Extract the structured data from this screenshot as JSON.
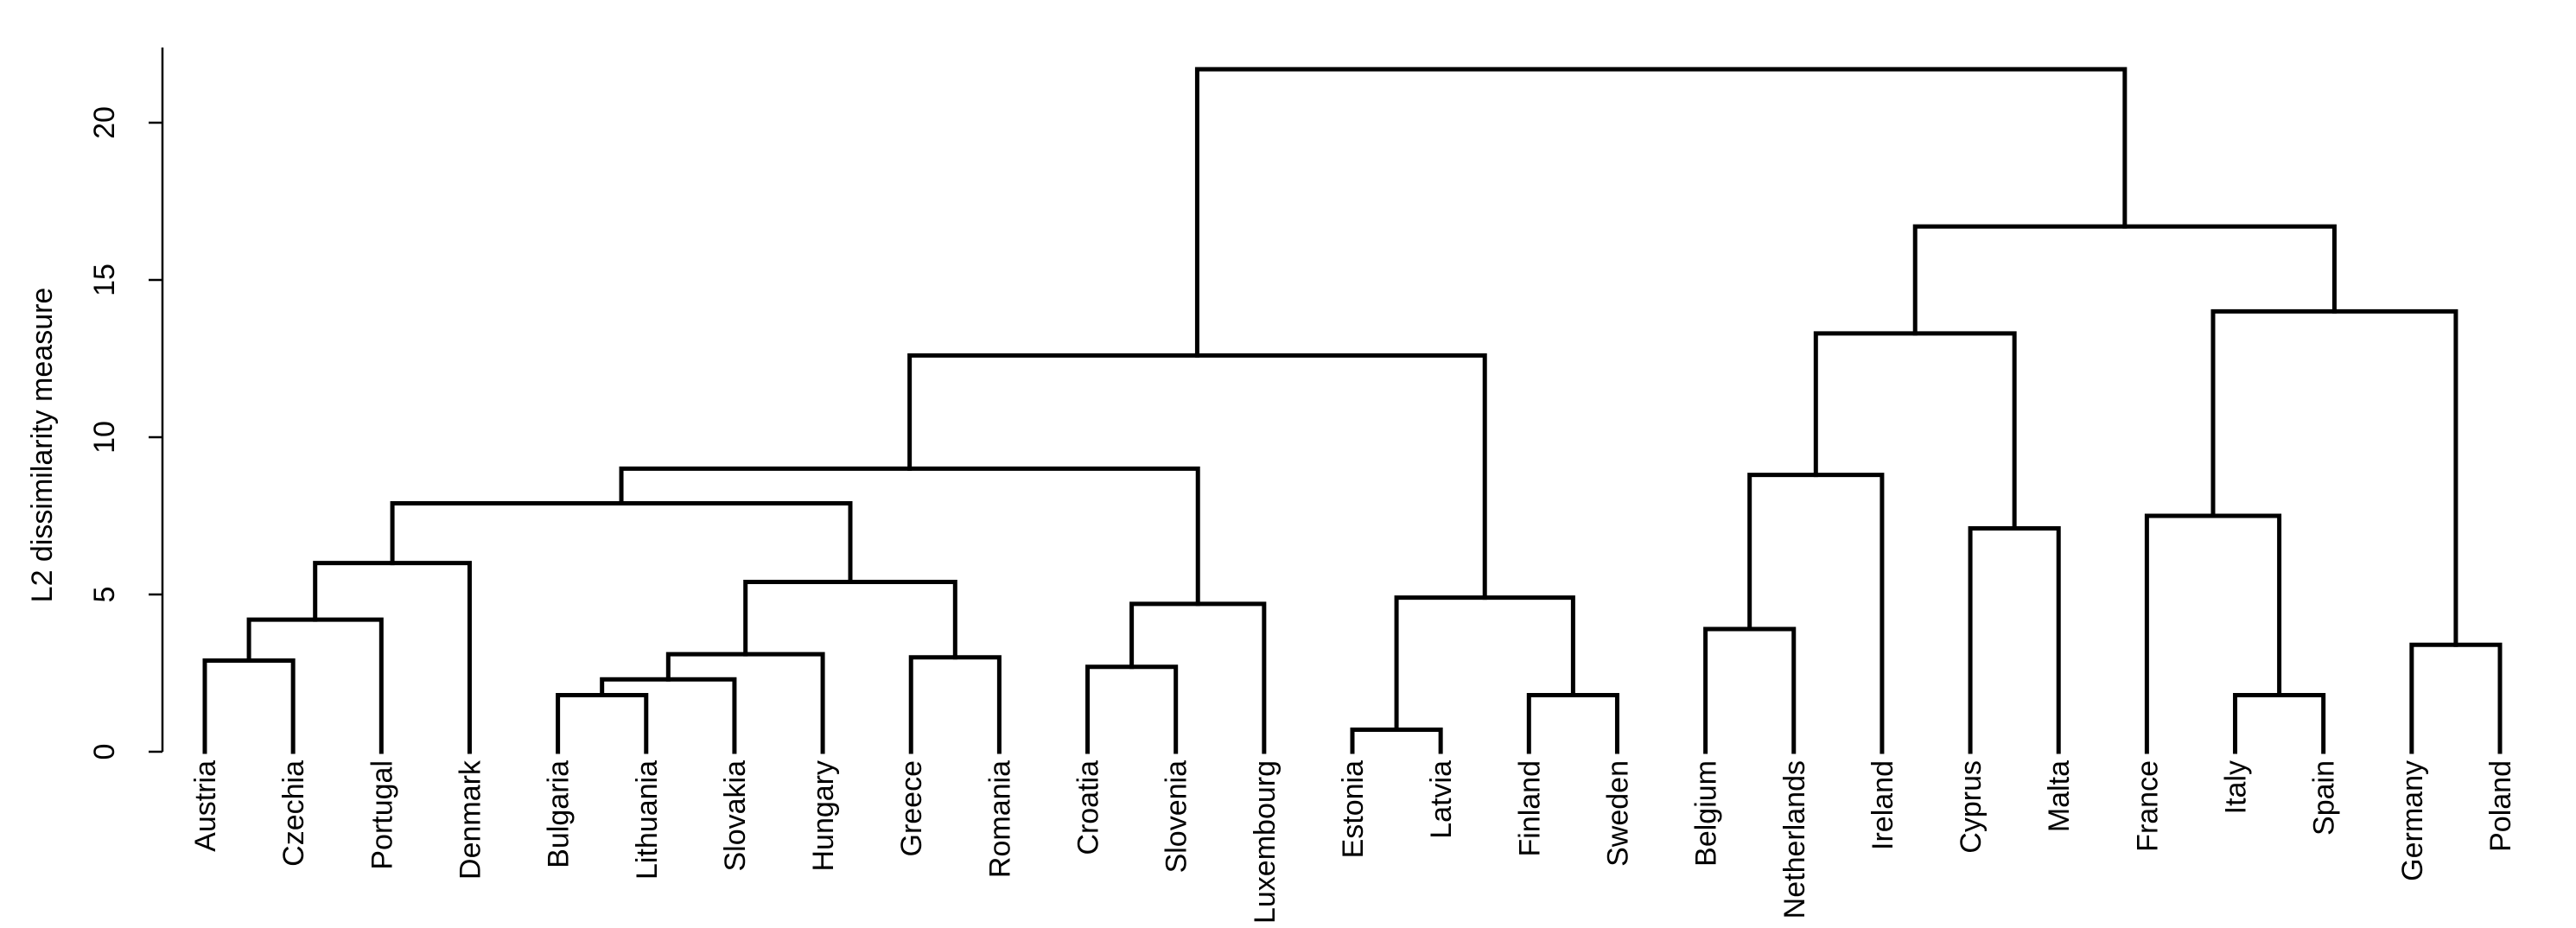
{
  "chart_data": {
    "type": "dendrogram",
    "title": "",
    "xlabel": "",
    "ylabel": "L2 dissimilarity measure",
    "ylim": [
      0,
      22
    ],
    "yticks": [
      0,
      5,
      10,
      15,
      20
    ],
    "grid": false,
    "leaves": [
      "Austria",
      "Czechia",
      "Portugal",
      "Denmark",
      "Bulgaria",
      "Lithuania",
      "Slovakia",
      "Hungary",
      "Greece",
      "Romania",
      "Croatia",
      "Slovenia",
      "Luxembourg",
      "Estonia",
      "Latvia",
      "Finland",
      "Sweden",
      "Belgium",
      "Netherlands",
      "Ireland",
      "Cyprus",
      "Malta",
      "France",
      "Italy",
      "Spain",
      "Germany",
      "Poland"
    ],
    "merges": [
      {
        "id": "m1",
        "left": "Estonia",
        "right": "Latvia",
        "height": 0.7
      },
      {
        "id": "m2",
        "left": "Bulgaria",
        "right": "Lithuania",
        "height": 1.8
      },
      {
        "id": "m3",
        "left": "Italy",
        "right": "Spain",
        "height": 1.8
      },
      {
        "id": "m4",
        "left": "Finland",
        "right": "Sweden",
        "height": 1.8
      },
      {
        "id": "m5",
        "left": "m2",
        "right": "Slovakia",
        "height": 2.3
      },
      {
        "id": "m6",
        "left": "Croatia",
        "right": "Slovenia",
        "height": 2.7
      },
      {
        "id": "m7",
        "left": "Austria",
        "right": "Czechia",
        "height": 2.9
      },
      {
        "id": "m8",
        "left": "Greece",
        "right": "Romania",
        "height": 3.0
      },
      {
        "id": "m9",
        "left": "m5",
        "right": "Hungary",
        "height": 3.1
      },
      {
        "id": "m10",
        "left": "Germany",
        "right": "Poland",
        "height": 3.4
      },
      {
        "id": "m11",
        "left": "Belgium",
        "right": "Netherlands",
        "height": 3.9
      },
      {
        "id": "m12",
        "left": "m7",
        "right": "Portugal",
        "height": 4.2
      },
      {
        "id": "m13",
        "left": "m6",
        "right": "Luxembourg",
        "height": 4.7
      },
      {
        "id": "m14",
        "left": "m1",
        "right": "m4",
        "height": 4.9
      },
      {
        "id": "m15",
        "left": "m9",
        "right": "m8",
        "height": 5.4
      },
      {
        "id": "m16",
        "left": "m12",
        "right": "Denmark",
        "height": 6.0
      },
      {
        "id": "m17",
        "left": "Cyprus",
        "right": "Malta",
        "height": 7.1
      },
      {
        "id": "m18",
        "left": "France",
        "right": "m3",
        "height": 7.5
      },
      {
        "id": "m19",
        "left": "m16",
        "right": "m15",
        "height": 7.9
      },
      {
        "id": "m20",
        "left": "m11",
        "right": "Ireland",
        "height": 8.8
      },
      {
        "id": "m21",
        "left": "m19",
        "right": "m13",
        "height": 9.0
      },
      {
        "id": "m22",
        "left": "m21",
        "right": "m14",
        "height": 12.6
      },
      {
        "id": "m23",
        "left": "m20",
        "right": "m17",
        "height": 13.3
      },
      {
        "id": "m24",
        "left": "m18",
        "right": "m10",
        "height": 14.0
      },
      {
        "id": "m25",
        "left": "m23",
        "right": "m24",
        "height": 16.7
      },
      {
        "id": "m26",
        "left": "m22",
        "right": "m25",
        "height": 21.7
      }
    ]
  }
}
